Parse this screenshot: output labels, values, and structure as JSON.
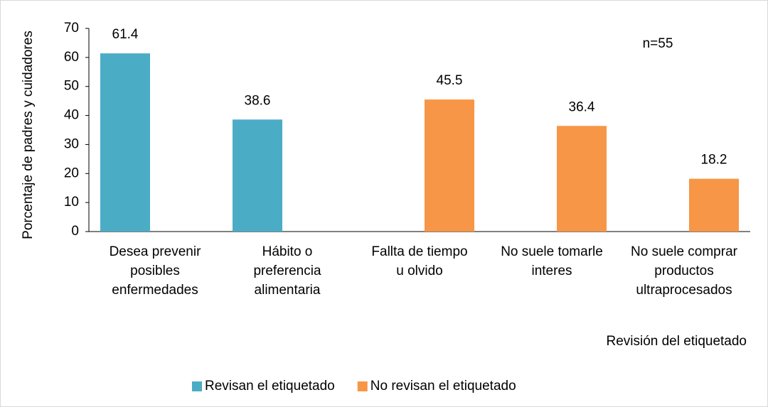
{
  "chart_data": {
    "type": "bar",
    "ylabel": "Porcentaje de padres y cuidadores",
    "xlabel": "Revisión del etiquetado",
    "annotation": "n=55",
    "categories": [
      "Desea prevenir posibles enfermedades",
      "Hábito o preferencia alimentaria",
      "Fallta de tiempo u olvido",
      "No suele tomarle interes",
      "No suele comprar productos ultraprocesados"
    ],
    "series": [
      {
        "name": "Revisan el etiquetado",
        "color": "#4bacc6",
        "values": [
          61.4,
          38.6,
          null,
          null,
          null
        ]
      },
      {
        "name": "No revisan el etiquetado",
        "color": "#f79646",
        "values": [
          null,
          null,
          45.5,
          36.4,
          18.2
        ]
      }
    ],
    "ylim": [
      0,
      70
    ],
    "yticks": [
      0,
      10,
      20,
      30,
      40,
      50,
      60,
      70
    ],
    "grid": false,
    "legend": "bottom"
  }
}
